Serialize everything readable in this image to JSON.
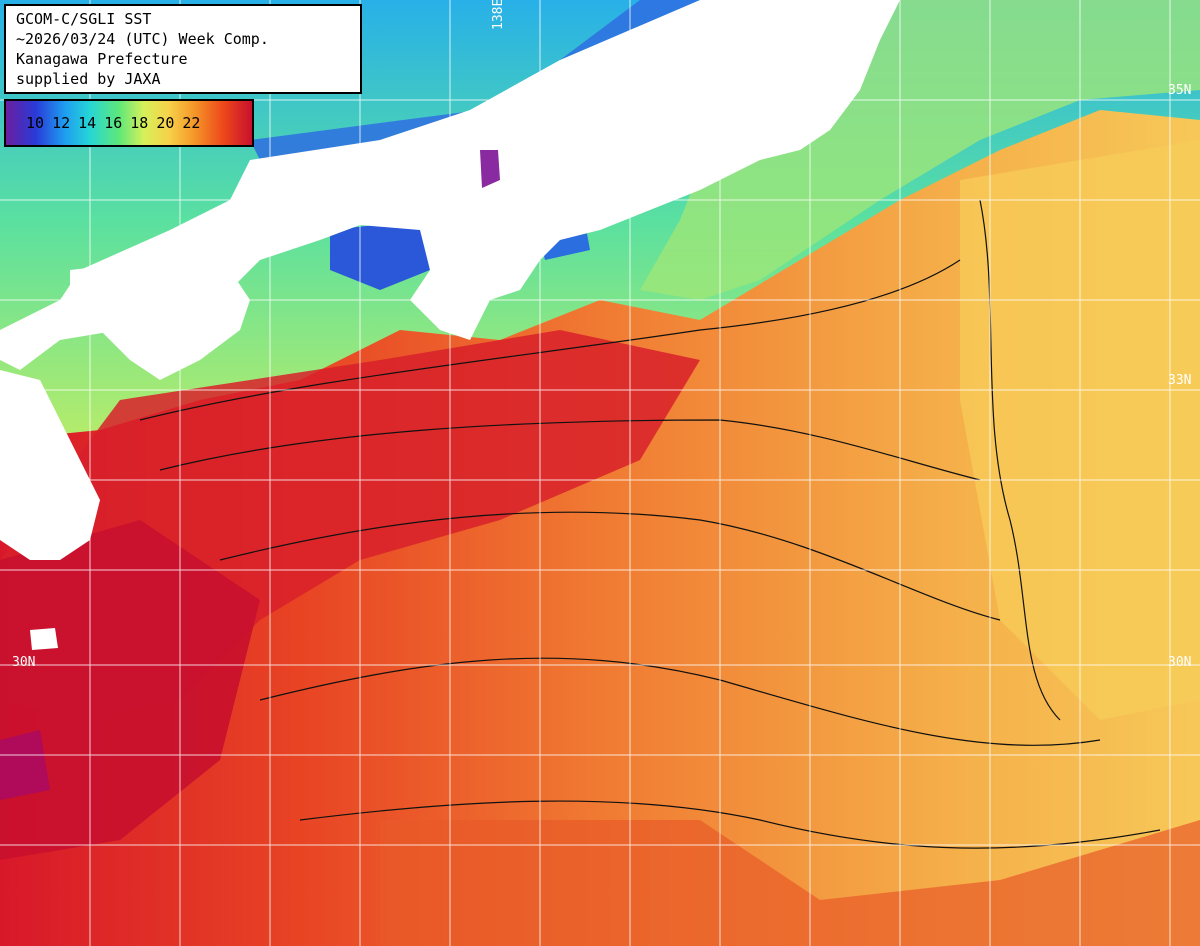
{
  "header": {
    "line1": "GCOM-C/SGLI SST",
    "line2": "~2026/03/24 (UTC) Week Comp.",
    "line3": "Kanagawa Prefecture",
    "line4": "supplied by JAXA"
  },
  "legend": {
    "labels": [
      "10",
      "12",
      "14",
      "16",
      "18",
      "20",
      "22"
    ]
  },
  "grid_labels": {
    "lon_top": "138E",
    "lat_35n": "35N",
    "lat_33n": "33N",
    "lat_30n_left": "30N",
    "lat_30n_right": "30N"
  },
  "colors": {
    "sea_warm": "#e8502a",
    "sea_hot": "#d0142a",
    "sea_mid": "#f39a3a",
    "sea_cool": "#f6d060",
    "sea_green": "#8ee07a",
    "sea_cyan": "#30c8e0",
    "sea_blue": "#2e5ce0",
    "land": "#ffffff"
  }
}
